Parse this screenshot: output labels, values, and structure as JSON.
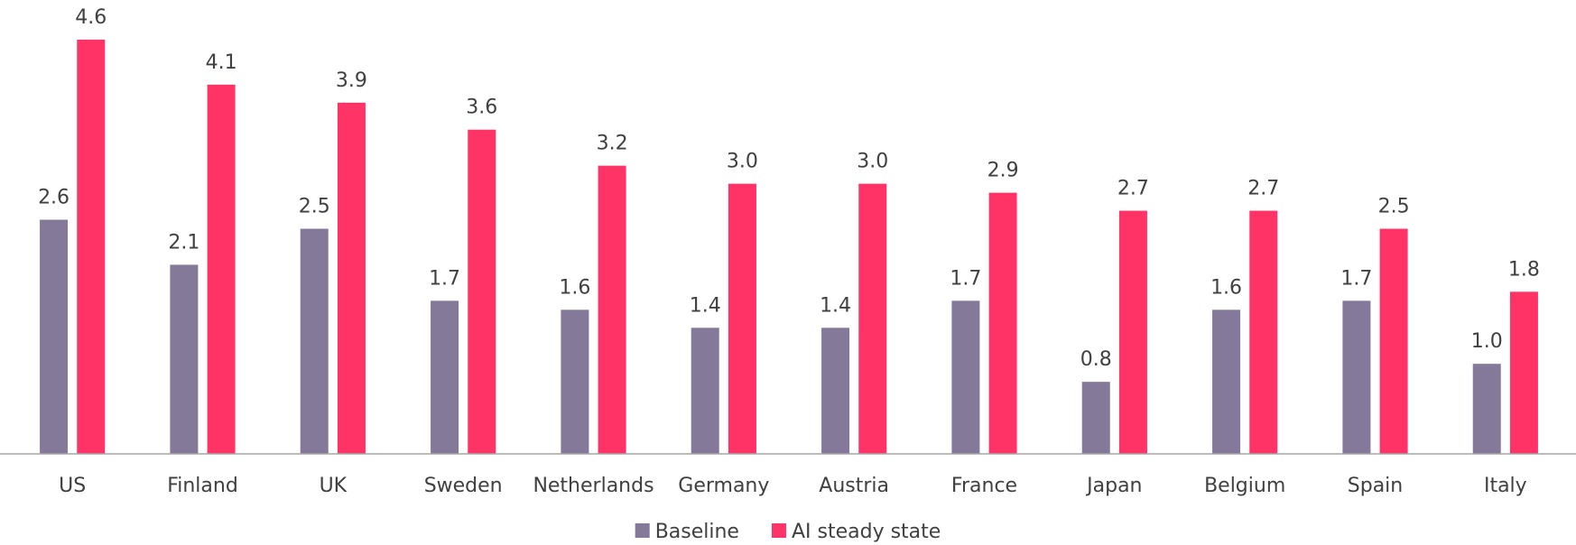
{
  "chart_data": {
    "type": "bar",
    "categories": [
      "US",
      "Finland",
      "UK",
      "Sweden",
      "Netherlands",
      "Germany",
      "Austria",
      "France",
      "Japan",
      "Belgium",
      "Spain",
      "Italy"
    ],
    "series": [
      {
        "name": "Baseline",
        "color": "#85799a",
        "values": [
          2.6,
          2.1,
          2.5,
          1.7,
          1.6,
          1.4,
          1.4,
          1.7,
          0.8,
          1.6,
          1.7,
          1.0
        ],
        "value_labels": [
          "2.6",
          "2.1",
          "2.5",
          "1.7",
          "1.6",
          "1.4",
          "1.4",
          "1.7",
          "0.8",
          "1.6",
          "1.7",
          "1.0"
        ]
      },
      {
        "name": "AI steady state",
        "color": "#ff3366",
        "values": [
          4.6,
          4.1,
          3.9,
          3.6,
          3.2,
          3.0,
          3.0,
          2.9,
          2.7,
          2.7,
          2.5,
          1.8
        ],
        "value_labels": [
          "4.6",
          "4.1",
          "3.9",
          "3.6",
          "3.2",
          "3.0",
          "3.0",
          "2.9",
          "2.7",
          "2.7",
          "2.5",
          "1.8"
        ]
      }
    ],
    "ylim": [
      0,
      5
    ],
    "legend": "bottom"
  }
}
